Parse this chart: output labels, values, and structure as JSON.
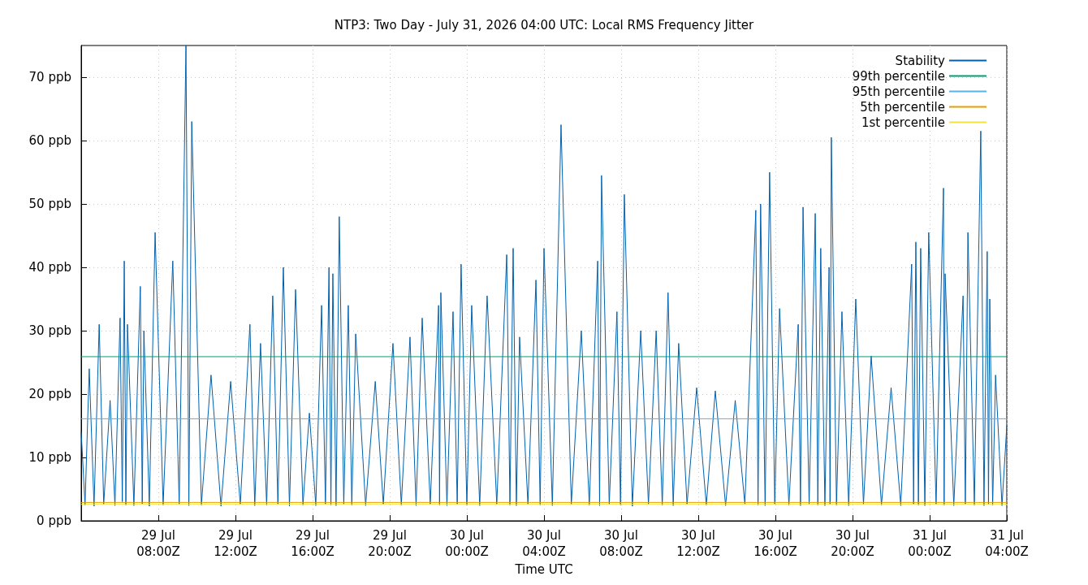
{
  "chart_data": {
    "type": "line",
    "title": "NTP3: Two Day - July 31, 2026 04:00 UTC: Local RMS Frequency Jitter",
    "xlabel": "Time UTC",
    "xlim": [
      "2026-07-29T04:00",
      "2026-07-31T04:00"
    ],
    "xticks": [
      {
        "value": "2026-07-29T08:00",
        "label": "29 Jul\n08:00Z"
      },
      {
        "value": "2026-07-29T12:00",
        "label": "29 Jul\n12:00Z"
      },
      {
        "value": "2026-07-29T16:00",
        "label": "29 Jul\n16:00Z"
      },
      {
        "value": "2026-07-29T20:00",
        "label": "29 Jul\n20:00Z"
      },
      {
        "value": "2026-07-30T00:00",
        "label": "30 Jul\n00:00Z"
      },
      {
        "value": "2026-07-30T04:00",
        "label": "30 Jul\n04:00Z"
      },
      {
        "value": "2026-07-30T08:00",
        "label": "30 Jul\n08:00Z"
      },
      {
        "value": "2026-07-30T12:00",
        "label": "30 Jul\n12:00Z"
      },
      {
        "value": "2026-07-30T16:00",
        "label": "30 Jul\n16:00Z"
      },
      {
        "value": "2026-07-30T20:00",
        "label": "30 Jul\n20:00Z"
      },
      {
        "value": "2026-07-31T00:00",
        "label": "31 Jul\n00:00Z"
      },
      {
        "value": "2026-07-31T04:00",
        "label": "31 Jul\n04:00Z"
      }
    ],
    "ylim": [
      0,
      75
    ],
    "yticks": [
      {
        "value": 0,
        "label": "0 ppb"
      },
      {
        "value": 10,
        "label": "10 ppb"
      },
      {
        "value": 20,
        "label": "20 ppb"
      },
      {
        "value": 30,
        "label": "30 ppb"
      },
      {
        "value": 40,
        "label": "40 ppb"
      },
      {
        "value": 50,
        "label": "50 ppb"
      },
      {
        "value": 60,
        "label": "60 ppb"
      },
      {
        "value": 70,
        "label": "70 ppb"
      }
    ],
    "grid": true,
    "legend": "top right",
    "marker": "none",
    "line_style": "solid",
    "series": [
      {
        "name": "Stability",
        "color": "#0060ad",
        "x": [
          "2026-07-29T04:00",
          "2026-07-29T04:12",
          "2026-07-29T04:25",
          "2026-07-29T04:40",
          "2026-07-29T04:56",
          "2026-07-29T05:10",
          "2026-07-29T05:30",
          "2026-07-29T05:45",
          "2026-07-29T06:01",
          "2026-07-29T06:08",
          "2026-07-29T06:14",
          "2026-07-29T06:19",
          "2026-07-29T06:24",
          "2026-07-29T06:44",
          "2026-07-29T07:04",
          "2026-07-29T07:10",
          "2026-07-29T07:15",
          "2026-07-29T07:32",
          "2026-07-29T07:50",
          "2026-07-29T08:15",
          "2026-07-29T08:45",
          "2026-07-29T09:05",
          "2026-07-29T09:26",
          "2026-07-29T09:35",
          "2026-07-29T09:44",
          "2026-07-29T10:14",
          "2026-07-29T10:44",
          "2026-07-29T11:15",
          "2026-07-29T11:45",
          "2026-07-29T12:15",
          "2026-07-29T12:45",
          "2026-07-29T13:00",
          "2026-07-29T13:18",
          "2026-07-29T13:37",
          "2026-07-29T13:56",
          "2026-07-29T14:12",
          "2026-07-29T14:29",
          "2026-07-29T14:48",
          "2026-07-29T15:07",
          "2026-07-29T15:30",
          "2026-07-29T15:50",
          "2026-07-29T16:10",
          "2026-07-29T16:28",
          "2026-07-29T16:40",
          "2026-07-29T16:51",
          "2026-07-29T16:57",
          "2026-07-29T17:03",
          "2026-07-29T17:13",
          "2026-07-29T17:23",
          "2026-07-29T17:37",
          "2026-07-29T17:51",
          "2026-07-29T18:02",
          "2026-07-29T18:14",
          "2026-07-29T18:45",
          "2026-07-29T19:15",
          "2026-07-29T19:40",
          "2026-07-29T20:10",
          "2026-07-29T20:36",
          "2026-07-29T21:03",
          "2026-07-29T21:22",
          "2026-07-29T21:41",
          "2026-07-29T22:06",
          "2026-07-29T22:32",
          "2026-07-29T22:35",
          "2026-07-29T22:39",
          "2026-07-29T22:58",
          "2026-07-29T23:17",
          "2026-07-29T23:30",
          "2026-07-29T23:42",
          "2026-07-30T00:00",
          "2026-07-30T00:15",
          "2026-07-30T00:40",
          "2026-07-30T01:03",
          "2026-07-30T01:33",
          "2026-07-30T02:04",
          "2026-07-30T02:14",
          "2026-07-30T02:24",
          "2026-07-30T02:34",
          "2026-07-30T02:44",
          "2026-07-30T03:10",
          "2026-07-30T03:35",
          "2026-07-30T03:48",
          "2026-07-30T04:00",
          "2026-07-30T04:26",
          "2026-07-30T04:53",
          "2026-07-30T05:25",
          "2026-07-30T05:56",
          "2026-07-30T06:21",
          "2026-07-30T06:47",
          "2026-07-30T06:53",
          "2026-07-30T06:59",
          "2026-07-30T07:23",
          "2026-07-30T07:47",
          "2026-07-30T07:58",
          "2026-07-30T08:10",
          "2026-07-30T08:35",
          "2026-07-30T09:01",
          "2026-07-30T09:25",
          "2026-07-30T09:49",
          "2026-07-30T10:08",
          "2026-07-30T10:26",
          "2026-07-30T10:42",
          "2026-07-30T10:59",
          "2026-07-30T11:25",
          "2026-07-30T11:55",
          "2026-07-30T12:25",
          "2026-07-30T12:53",
          "2026-07-30T13:25",
          "2026-07-30T13:55",
          "2026-07-30T14:25",
          "2026-07-30T14:59",
          "2026-07-30T15:06",
          "2026-07-30T15:14",
          "2026-07-30T15:28",
          "2026-07-30T15:42",
          "2026-07-30T15:58",
          "2026-07-30T16:13",
          "2026-07-30T16:42",
          "2026-07-30T17:11",
          "2026-07-30T17:18",
          "2026-07-30T17:26",
          "2026-07-30T17:45",
          "2026-07-30T18:04",
          "2026-07-30T18:12",
          "2026-07-30T18:21",
          "2026-07-30T18:34",
          "2026-07-30T18:47",
          "2026-07-30T18:50",
          "2026-07-30T18:54",
          "2026-07-30T19:10",
          "2026-07-30T19:27",
          "2026-07-30T19:48",
          "2026-07-30T20:10",
          "2026-07-30T20:34",
          "2026-07-30T20:58",
          "2026-07-30T21:30",
          "2026-07-30T22:00",
          "2026-07-30T22:30",
          "2026-07-30T23:04",
          "2026-07-30T23:10",
          "2026-07-30T23:17",
          "2026-07-30T23:25",
          "2026-07-30T23:32",
          "2026-07-30T23:45",
          "2026-07-30T23:57",
          "2026-07-31T00:20",
          "2026-07-31T00:43",
          "2026-07-31T00:45",
          "2026-07-31T00:48",
          "2026-07-31T01:15",
          "2026-07-31T01:44",
          "2026-07-31T01:51",
          "2026-07-31T01:59",
          "2026-07-31T02:19",
          "2026-07-31T02:39",
          "2026-07-31T02:49",
          "2026-07-31T02:59",
          "2026-07-31T03:03",
          "2026-07-31T03:07",
          "2026-07-31T03:16",
          "2026-07-31T03:25",
          "2026-07-31T03:45",
          "2026-07-31T04:00"
        ],
        "values": [
          14,
          2.5,
          24,
          2.3,
          31,
          2.6,
          19,
          2.4,
          32,
          3,
          41,
          2.5,
          31,
          2.4,
          37,
          2.7,
          30,
          2.3,
          45.5,
          2.5,
          41,
          2.6,
          75,
          2.4,
          63,
          2.5,
          23,
          2.3,
          22,
          2.6,
          31,
          2.4,
          28,
          2.5,
          35.5,
          2.6,
          40,
          2.3,
          36.5,
          2.5,
          17,
          2.4,
          34,
          2.6,
          40,
          2.5,
          39,
          2.4,
          48,
          2.6,
          34,
          2.5,
          29.5,
          2.4,
          22,
          2.6,
          28,
          2.5,
          29,
          2.4,
          32,
          2.6,
          34,
          2.5,
          36,
          2.4,
          33,
          2.6,
          40.5,
          2.5,
          34,
          2.4,
          35.5,
          2.6,
          42,
          2.5,
          43,
          2.4,
          29,
          2.6,
          38,
          2.5,
          43,
          2.4,
          62.5,
          2.6,
          30,
          2.5,
          41,
          2.4,
          54.5,
          2.6,
          33,
          2.5,
          51.5,
          2.3,
          30,
          2.6,
          30,
          2.5,
          36,
          2.4,
          28,
          2.6,
          21,
          2.5,
          20.5,
          2.4,
          19,
          2.6,
          49,
          2.5,
          50,
          2.4,
          55,
          2.6,
          33.5,
          2.5,
          31,
          2.4,
          49.5,
          2.6,
          48.5,
          2.5,
          43,
          2.4,
          40,
          2.6,
          60.5,
          2.5,
          33,
          2.4,
          35,
          2.6,
          26,
          2.5,
          21,
          2.4,
          40.5,
          2.6,
          44,
          2.5,
          43,
          2.4,
          45.5,
          2.6,
          52.5,
          2.5,
          39,
          2.4,
          35.5,
          2.6,
          45.5,
          2.5,
          61.5,
          2.4,
          42.5,
          2.6,
          35,
          2.5,
          23,
          2.4,
          15
        ]
      },
      {
        "name": "99th percentile",
        "color": "#009e73",
        "x": [
          "2026-07-29T04:00",
          "2026-07-31T04:00"
        ],
        "values": [
          25.9,
          25.9
        ]
      },
      {
        "name": "95th percentile",
        "color": "#56b4e9",
        "x": [
          "2026-07-29T04:00",
          "2026-07-31T04:00"
        ],
        "values": [
          16.1,
          16.1
        ]
      },
      {
        "name": "5th percentile",
        "color": "#e69f00",
        "x": [
          "2026-07-29T04:00",
          "2026-07-31T04:00"
        ],
        "values": [
          2.9,
          2.9
        ]
      },
      {
        "name": "1st percentile",
        "color": "#f0e442",
        "x": [
          "2026-07-29T04:00",
          "2026-07-31T04:00"
        ],
        "values": [
          2.6,
          2.6
        ]
      }
    ]
  }
}
